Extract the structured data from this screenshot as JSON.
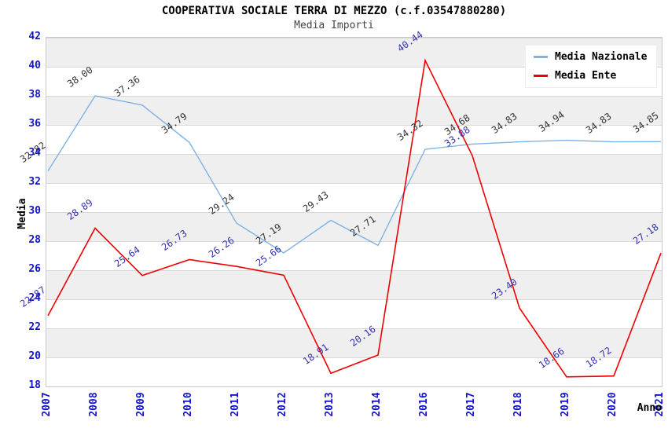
{
  "chart_data": {
    "type": "line",
    "title": "COOPERATIVA SOCIALE TERRA DI MEZZO (c.f.03547880280)",
    "subtitle": "Media Importi",
    "xlabel": "Anno",
    "ylabel": "Media",
    "ylim": [
      18,
      42
    ],
    "ytick_step": 2,
    "yticks": [
      42,
      40,
      38,
      36,
      34,
      32,
      30,
      28,
      26,
      24,
      22,
      20,
      18
    ],
    "grid": "alternating-horizontal-bands",
    "legend_position": "top-right",
    "categories": [
      "2007",
      "2008",
      "2009",
      "2010",
      "2011",
      "2012",
      "2013",
      "2014",
      "2016",
      "2017",
      "2018",
      "2019",
      "2020",
      "2021"
    ],
    "series": [
      {
        "name": "Media Nazionale",
        "color": "#7FB2E5",
        "label_color": "#333333",
        "values": [
          32.82,
          38.0,
          37.36,
          34.79,
          29.24,
          27.19,
          29.43,
          27.71,
          34.32,
          34.68,
          34.83,
          34.94,
          34.83,
          34.85
        ]
      },
      {
        "name": "Media Ente",
        "color": "#EE0000",
        "label_color": "#3434A8",
        "values": [
          22.87,
          28.89,
          25.64,
          26.73,
          26.26,
          25.66,
          18.91,
          20.16,
          40.44,
          33.88,
          23.4,
          18.66,
          18.72,
          27.18
        ]
      }
    ]
  },
  "colors": {
    "axis_text": "#1414CC",
    "band_gray": "#EFEFEF",
    "band_white": "#FFFFFF",
    "grid_line": "#D9D9D9",
    "plot_border": "#C9C9C9",
    "title_text": "#000000",
    "subtitle_text": "#444444"
  }
}
